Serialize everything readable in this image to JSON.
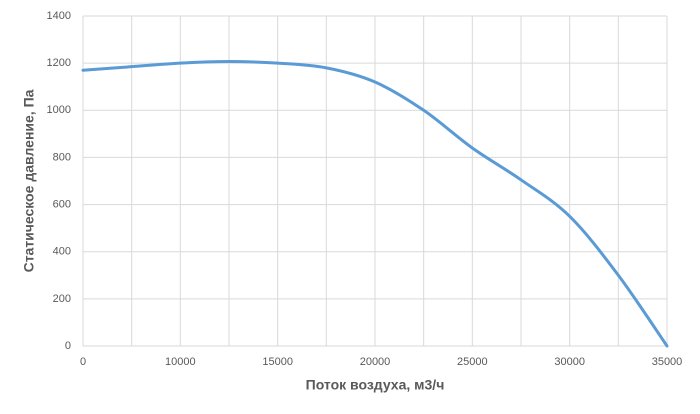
{
  "chart_data": {
    "type": "line",
    "x_label": "Поток воздуха, м3/ч",
    "y_label": "Статическое давление, Па",
    "categories": [
      0,
      null,
      10000,
      null,
      15000,
      null,
      20000,
      null,
      25000,
      null,
      30000,
      null,
      35000
    ],
    "series": [
      {
        "color": "#5b9bd5",
        "values": [
          1170,
          1185,
          1200,
          1207,
          1200,
          1180,
          1120,
          1000,
          840,
          705,
          550,
          300,
          0
        ]
      }
    ],
    "ylim": [
      0,
      1400
    ],
    "yticks": [
      0,
      200,
      400,
      600,
      800,
      1000,
      1200,
      1400
    ],
    "grid": true,
    "smooth": true
  }
}
